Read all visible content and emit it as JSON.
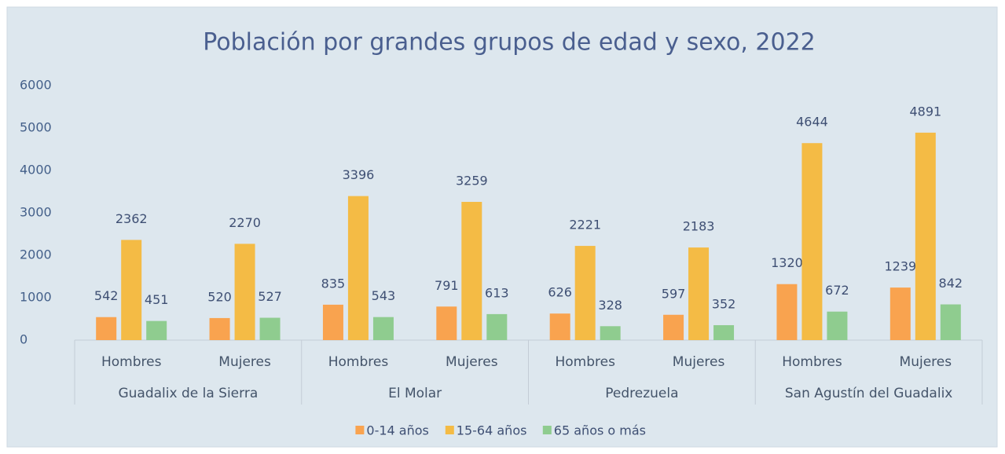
{
  "chart_data": {
    "type": "bar",
    "title": "Población por grandes grupos de edad y sexo, 2022",
    "categories": [
      "Hombres",
      "Mujeres",
      "Hombres",
      "Mujeres",
      "Hombres",
      "Mujeres",
      "Hombres",
      "Mujeres"
    ],
    "groups": [
      "Guadalix de la Sierra",
      "El Molar",
      "Pedrezuela",
      "San Agustín del Guadalix"
    ],
    "series": [
      {
        "name": "0-14 años",
        "color": "#f9a34f",
        "values": [
          542,
          520,
          835,
          791,
          626,
          597,
          1320,
          1239
        ]
      },
      {
        "name": "15-64 años",
        "color": "#f4bb45",
        "values": [
          2362,
          2270,
          3396,
          3259,
          2221,
          2183,
          4644,
          4891
        ]
      },
      {
        "name": "65 años o más",
        "color": "#8fcc8f",
        "values": [
          451,
          527,
          543,
          613,
          328,
          352,
          672,
          842
        ]
      }
    ],
    "ylim": [
      0,
      6000
    ],
    "yticks": [
      0,
      1000,
      2000,
      3000,
      4000,
      5000,
      6000
    ],
    "grid": false,
    "legend": "bottom"
  }
}
